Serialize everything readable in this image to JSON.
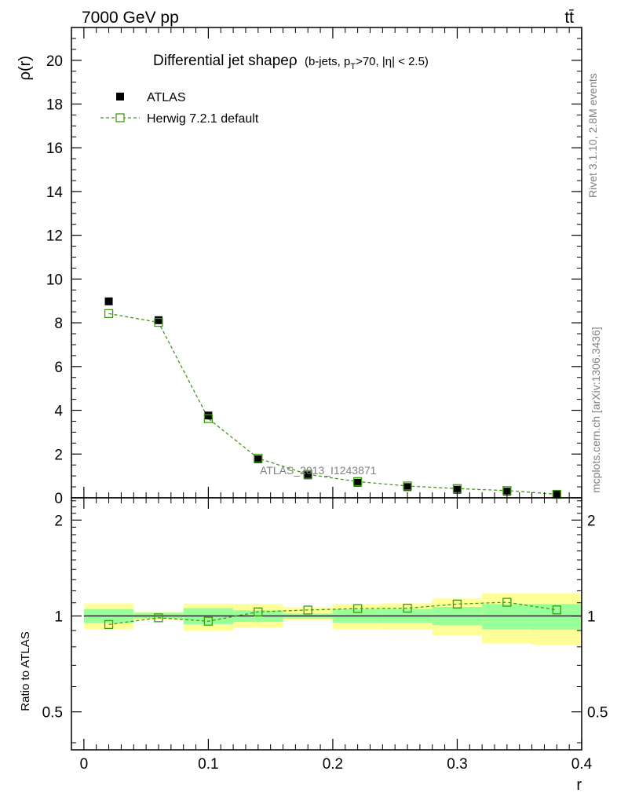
{
  "header": {
    "energy_label": "7000 GeV pp",
    "process_label": "tt̄"
  },
  "side_labels": {
    "rivet": "Rivet 3.1.10,  2.8M events",
    "mcplots": "mcplots.cern.ch [arXiv:1306.3436]"
  },
  "chart_data": [
    {
      "type": "scatter",
      "title": "Differential jet shape",
      "title_symbol": "ρ",
      "subtitle_parts": [
        "(b-jets, p",
        "T",
        ">70, |η| < 2.5)"
      ],
      "xlabel": "r",
      "ylabel": "ρ(r)",
      "xlim": [
        -0.01,
        0.4
      ],
      "ylim": [
        0,
        21.5
      ],
      "x_ticks": [
        0,
        0.1,
        0.2,
        0.3,
        0.4
      ],
      "x_tick_labels": [
        "0",
        "0.1",
        "0.2",
        "0.3",
        "0.4"
      ],
      "y_ticks": [
        0,
        2,
        4,
        6,
        8,
        10,
        12,
        14,
        16,
        18,
        20
      ],
      "y_tick_labels": [
        "0",
        "2",
        "4",
        "6",
        "8",
        "10",
        "12",
        "14",
        "16",
        "18",
        "20"
      ],
      "watermark": "ATLAS_2013_I1243871",
      "legend": {
        "placement": "top-left",
        "entries": [
          "ATLAS",
          "Herwig 7.2.1 default"
        ]
      },
      "series": [
        {
          "name": "ATLAS",
          "marker": "filled-square",
          "color": "#000000",
          "x": [
            0.02,
            0.06,
            0.1,
            0.14,
            0.18,
            0.22,
            0.26,
            0.3,
            0.34,
            0.38
          ],
          "y": [
            8.98,
            8.12,
            3.76,
            1.76,
            1.03,
            0.69,
            0.49,
            0.37,
            0.28,
            0.15
          ],
          "yerr": [
            0.08,
            0.12,
            0.14,
            0.1,
            0.07,
            0.05,
            0.05,
            0.04,
            0.04,
            0.03
          ]
        },
        {
          "name": "Herwig 7.2.1 default",
          "marker": "open-square",
          "line": "dashed",
          "color": "#3f9a12",
          "x": [
            0.02,
            0.06,
            0.1,
            0.14,
            0.18,
            0.22,
            0.26,
            0.3,
            0.34,
            0.38
          ],
          "y": [
            8.42,
            8.02,
            3.62,
            1.81,
            1.07,
            0.74,
            0.54,
            0.42,
            0.33,
            0.16
          ]
        }
      ]
    },
    {
      "type": "scatter",
      "xlabel": "r",
      "ylabel": "Ratio to ATLAS",
      "xlim": [
        -0.01,
        0.4
      ],
      "ylim": [
        0.38,
        2.35
      ],
      "y_ticks": [
        0.5,
        1,
        2
      ],
      "y_tick_labels": [
        "0.5",
        "1",
        "2"
      ],
      "x_ticks": [
        0,
        0.1,
        0.2,
        0.3,
        0.4
      ],
      "x_tick_labels": [
        "0",
        "0.1",
        "0.2",
        "0.3",
        "0.4"
      ],
      "reference_line": 1,
      "bands": {
        "bin_edges": [
          0.0,
          0.04,
          0.08,
          0.12,
          0.16,
          0.2,
          0.24,
          0.28,
          0.32,
          0.36,
          0.4
        ],
        "inner_color": "#99ff99",
        "outer_color": "#ffff99",
        "inner_low": [
          0.952,
          0.983,
          0.942,
          0.958,
          0.982,
          0.953,
          0.953,
          0.935,
          0.908,
          0.905
        ],
        "inner_high": [
          1.05,
          1.023,
          1.058,
          1.042,
          1.018,
          1.049,
          1.051,
          1.068,
          1.09,
          1.09
        ],
        "outer_low": [
          0.91,
          0.975,
          0.898,
          0.92,
          0.968,
          0.91,
          0.905,
          0.868,
          0.818,
          0.812
        ],
        "outer_high": [
          1.095,
          1.033,
          1.093,
          1.092,
          1.067,
          1.092,
          1.095,
          1.135,
          1.18,
          1.18
        ]
      },
      "series": [
        {
          "name": "Herwig 7.2.1 default",
          "marker": "open-square",
          "line": "dashed",
          "color": "#3f9a12",
          "x": [
            0.02,
            0.06,
            0.1,
            0.14,
            0.18,
            0.22,
            0.26,
            0.3,
            0.34,
            0.38
          ],
          "y": [
            0.94,
            0.987,
            0.963,
            1.03,
            1.044,
            1.055,
            1.058,
            1.09,
            1.104,
            1.045
          ]
        }
      ]
    }
  ]
}
